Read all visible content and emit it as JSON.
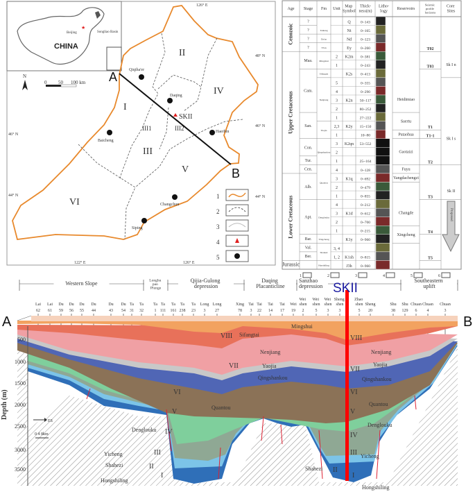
{
  "map": {
    "inset_country": "CHINA",
    "inset_capital": "Beijing",
    "inset_basin": "Songliao Basin",
    "north": "N",
    "scale": [
      "0",
      "50",
      "100 km"
    ],
    "lon_labels": [
      "126° E",
      "122° E",
      "126° E"
    ],
    "lat_labels": [
      "48° N",
      "46° N",
      "46° N",
      "44° N",
      "44° N"
    ],
    "zones": [
      "I",
      "II",
      "III",
      "III1",
      "III2",
      "IV",
      "V",
      "VI"
    ],
    "cities": [
      "Qiqiha'er",
      "Daqing",
      "Baicheng",
      "Haerbin",
      "Changchun",
      "Siping"
    ],
    "well": "SKII",
    "section_ends": [
      "A",
      "B"
    ],
    "legend": [
      "1",
      "2",
      "3",
      "4",
      "5"
    ],
    "colors": {
      "boundary": "#e8892c",
      "well": "#e02020",
      "well_label": "#1a1aa0"
    }
  },
  "strat": {
    "headers": [
      "Age",
      "Stage",
      "Fm",
      "Unit",
      "Map Symbol",
      "Thick-ness(m)",
      "Litho-logy",
      "Reservoirs",
      "Seismic profile horizons",
      "Core Sites"
    ],
    "rows": [
      {
        "unit": "",
        "sym": "Q",
        "thk": "0~143"
      },
      {
        "unit": "",
        "sym": "Nt",
        "thk": "0~165"
      },
      {
        "unit": "",
        "sym": "Nd",
        "thk": "0~123"
      },
      {
        "unit": "",
        "sym": "Ey",
        "thk": "0~260"
      },
      {
        "unit": "2",
        "sym": "K2m",
        "thk": "0~381"
      },
      {
        "unit": "1",
        "sym": "",
        "thk": "0~243"
      },
      {
        "unit": "",
        "sym": "K2s",
        "thk": "0~413"
      },
      {
        "unit": "5",
        "sym": "",
        "thk": "0~355"
      },
      {
        "unit": "4",
        "sym": "",
        "thk": "0~290"
      },
      {
        "unit": "3",
        "sym": "K2n",
        "thk": "50~117"
      },
      {
        "unit": "2",
        "sym": "",
        "thk": "80~252"
      },
      {
        "unit": "1",
        "sym": "",
        "thk": "27~222"
      },
      {
        "unit": "2,3",
        "sym": "K2y",
        "thk": "15~150"
      },
      {
        "unit": "1",
        "sym": "",
        "thk": "10~80"
      },
      {
        "unit": "3",
        "sym": "K2qn",
        "thk": "53~552"
      },
      {
        "unit": "2",
        "sym": "",
        "thk": ""
      },
      {
        "unit": "1",
        "sym": "",
        "thk": "25~164"
      },
      {
        "unit": "4",
        "sym": "",
        "thk": "0~128"
      },
      {
        "unit": "3",
        "sym": "K1q",
        "thk": "0~692"
      },
      {
        "unit": "2",
        "sym": "",
        "thk": "0~479"
      },
      {
        "unit": "1",
        "sym": "",
        "thk": "0~855"
      },
      {
        "unit": "4",
        "sym": "",
        "thk": "0~212"
      },
      {
        "unit": "3",
        "sym": "K1d",
        "thk": "0~612"
      },
      {
        "unit": "2",
        "sym": "",
        "thk": "0~700"
      },
      {
        "unit": "1",
        "sym": "",
        "thk": "0~215"
      },
      {
        "unit": "",
        "sym": "K1y",
        "thk": "0~960"
      },
      {
        "unit": "3, 4",
        "sym": "",
        "thk": ""
      },
      {
        "unit": "1, 2",
        "sym": "K1sh",
        "thk": "0~815"
      },
      {
        "unit": "",
        "sym": "J3h",
        "thk": "0~960"
      }
    ],
    "ages": [
      {
        "label": "Cenozoic",
        "from": 0,
        "to": 3
      },
      {
        "label": "Upper Cretaceous",
        "from": 4,
        "to": 17
      },
      {
        "label": "Lower Cretaceous",
        "from": 18,
        "to": 27
      },
      {
        "label": "Jurassic",
        "from": 28,
        "to": 28
      }
    ],
    "stages": [
      {
        "label": "?",
        "from": 0,
        "to": 0
      },
      {
        "label": "?",
        "from": 1,
        "to": 1
      },
      {
        "label": "?",
        "from": 2,
        "to": 2
      },
      {
        "label": "?",
        "from": 3,
        "to": 3
      },
      {
        "label": "Maa.",
        "from": 4,
        "to": 5
      },
      {
        "label": "Cam.",
        "from": 6,
        "to": 10
      },
      {
        "label": "San.",
        "from": 11,
        "to": 13
      },
      {
        "label": "Con.",
        "from": 14,
        "to": 15
      },
      {
        "label": "Tur.",
        "from": 16,
        "to": 16
      },
      {
        "label": "Cen.",
        "from": 17,
        "to": 17
      },
      {
        "label": "Alb.",
        "from": 18,
        "to": 20
      },
      {
        "label": "Apt.",
        "from": 21,
        "to": 24
      },
      {
        "label": "Bar.",
        "from": 25,
        "to": 25
      },
      {
        "label": "Val.",
        "from": 26,
        "to": 26
      },
      {
        "label": "Ber.",
        "from": 27,
        "to": 27
      }
    ],
    "fms": [
      {
        "label": "Taikang",
        "from": 1,
        "to": 1
      },
      {
        "label": "Da'an",
        "from": 2,
        "to": 2
      },
      {
        "label": "Yi'an",
        "from": 3,
        "to": 3
      },
      {
        "label": "Mingshui",
        "from": 4,
        "to": 5
      },
      {
        "label": "Sifangtai",
        "from": 6,
        "to": 6
      },
      {
        "label": "Nenjiang",
        "from": 7,
        "to": 11
      },
      {
        "label": "Yaojia",
        "from": 12,
        "to": 13
      },
      {
        "label": "Qingshankou",
        "from": 14,
        "to": 16
      },
      {
        "label": "Quantou",
        "from": 17,
        "to": 20
      },
      {
        "label": "Denglouku",
        "from": 21,
        "to": 24
      },
      {
        "label": "Yingcheng",
        "from": 25,
        "to": 25
      },
      {
        "label": "Shahezi",
        "from": 26,
        "to": 27
      },
      {
        "label": "Huoshiling",
        "from": 28,
        "to": 28
      }
    ],
    "reservoirs": [
      {
        "label": "Heidimiao",
        "from": 8,
        "to": 10
      },
      {
        "label": "Saertu",
        "from": 11,
        "to": 12
      },
      {
        "label": "Putaohua",
        "from": 13,
        "to": 13
      },
      {
        "label": "Gaotaizi",
        "from": 14,
        "to": 16
      },
      {
        "label": "Fuyu",
        "from": 17,
        "to": 17
      },
      {
        "label": "Yangdachengzi",
        "from": 18,
        "to": 18
      },
      {
        "label": "Changde",
        "from": 21,
        "to": 23
      },
      {
        "label": "Xingcheng",
        "from": 24,
        "to": 25
      }
    ],
    "horizons": [
      {
        "label": "T02",
        "at": 3
      },
      {
        "label": "T03",
        "at": 5
      },
      {
        "label": "T1",
        "at": 12
      },
      {
        "label": "T1-1",
        "at": 13
      },
      {
        "label": "T2",
        "at": 16
      },
      {
        "label": "T3",
        "at": 20
      },
      {
        "label": "T4",
        "at": 24
      },
      {
        "label": "T5",
        "at": 27
      }
    ],
    "cores": [
      {
        "label": "Sk I n",
        "from": 4,
        "to": 6
      },
      {
        "label": "Sk I s",
        "from": 11,
        "to": 16
      },
      {
        "label": "Sk II",
        "from": 19,
        "to": 20
      }
    ],
    "proposed": "Proposed",
    "legend": [
      "1",
      "2",
      "3",
      "4",
      "5",
      "6"
    ]
  },
  "section": {
    "well_title": "SKII",
    "ends": [
      "A",
      "B"
    ],
    "zones": [
      "Western Slope",
      "Longhu pao Plunge",
      "Qijia-Gulong depression",
      "Daqing Placanticline",
      "Sanzhao depression",
      "Southeastern uplift"
    ],
    "wells": [
      [
        "Lai",
        "62"
      ],
      [
        "Lai",
        "61"
      ],
      [
        "Du",
        "59"
      ],
      [
        "Du",
        "56"
      ],
      [
        "Du",
        "55"
      ],
      [
        "Du",
        "44"
      ],
      [
        "Du",
        "43"
      ],
      [
        "Du",
        "54"
      ],
      [
        "Ta",
        "31"
      ],
      [
        "Ta",
        "32"
      ],
      [
        "Ta",
        "1"
      ],
      [
        "Ta",
        "111"
      ],
      [
        "Ta",
        "161"
      ],
      [
        "Ta",
        "238"
      ],
      [
        "Ta",
        "23"
      ],
      [
        "Long",
        "3"
      ],
      [
        "Long",
        "27"
      ],
      [
        "Xing",
        "78"
      ],
      [
        "Tai",
        "3"
      ],
      [
        "Tai",
        "22"
      ],
      [
        "Tai",
        "14"
      ],
      [
        "Tai",
        "17"
      ],
      [
        "Wei",
        "19"
      ],
      [
        "Wei shen",
        "2"
      ],
      [
        "Wei shen",
        "5"
      ],
      [
        "Wei shen",
        "3"
      ],
      [
        "Sheng shen",
        "3"
      ],
      [
        "Zhao shen",
        "5"
      ],
      [
        "Sheng",
        "20"
      ],
      [
        "Shu",
        "38"
      ],
      [
        "Shu",
        "129"
      ],
      [
        "Chuan",
        "6"
      ],
      [
        "Chuan",
        "4"
      ],
      [
        "Chuan",
        "3"
      ]
    ],
    "ylabel": "Depth (m)",
    "depth_ticks": [
      "500",
      "1000",
      "1500",
      "2000",
      "2500",
      "3000",
      "3500"
    ],
    "direction": "ES",
    "scale": "0  4  8km",
    "roman": [
      "VIII",
      "VII",
      "VI",
      "V",
      "IV",
      "III",
      "II",
      "I",
      "VIII",
      "VII",
      "VI",
      "V",
      "IV",
      "III",
      "II",
      "I"
    ],
    "formations": [
      "Mingshui",
      "Sifangtai",
      "Nenjiang",
      "Yaojia",
      "Qingshankou",
      "Quantou",
      "Denglouku",
      "Yicheng",
      "Shahezi",
      "Hongshiling",
      "Nenjiang",
      "Yaojia",
      "Qingshankou",
      "Quantou",
      "Denglouku",
      "Yicheng",
      "Shahezi",
      "Hongshiling"
    ]
  }
}
